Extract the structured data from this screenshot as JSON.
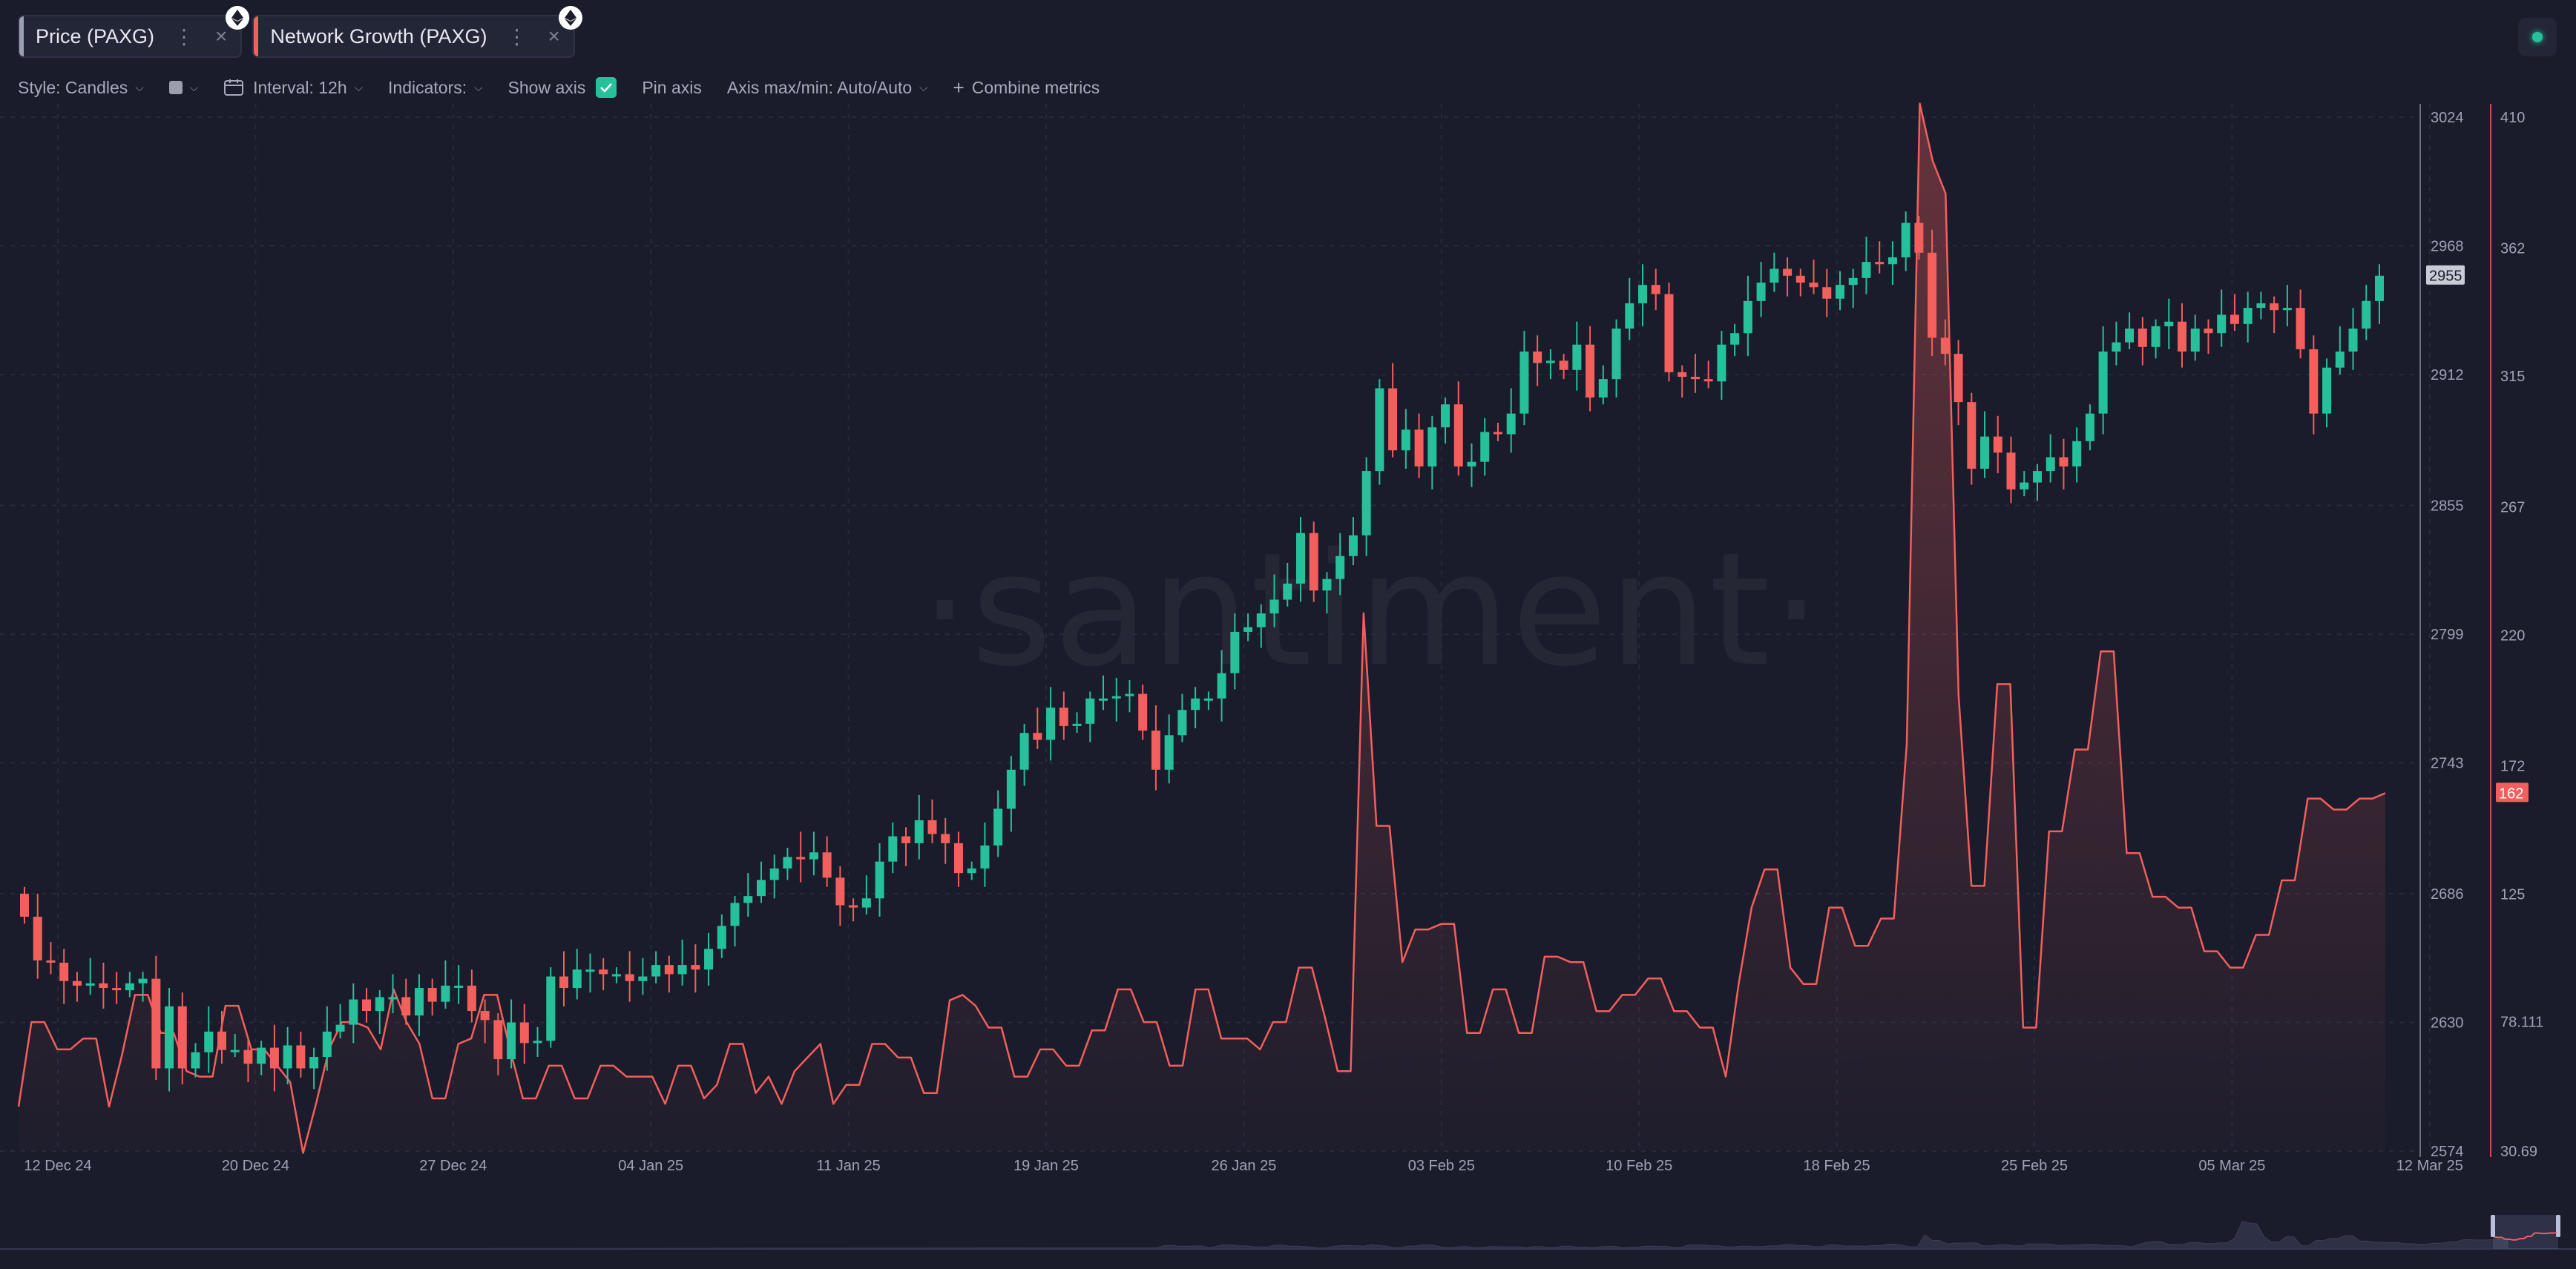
{
  "tabs": [
    {
      "label": "Price (PAXG)",
      "color": "#9aa0b4",
      "dots": "⋮",
      "close": "×"
    },
    {
      "label": "Network Growth (PAXG)",
      "color": "#f25f5c",
      "dots": "⋮",
      "close": "×"
    }
  ],
  "toolbar": {
    "style": "Style: Candles",
    "interval": "Interval: 12h",
    "indicators": "Indicators:",
    "show_axis": "Show axis",
    "pin_axis": "Pin axis",
    "axis_maxmin": "Axis max/min: Auto/Auto",
    "combine": "Combine metrics"
  },
  "watermark": "·santiment·",
  "colors": {
    "up": "#26c19a",
    "down": "#f25f5c",
    "line": "#f25f5c",
    "background": "#1a1c2b"
  },
  "chart_data": {
    "type": "candlestick+line",
    "x_tick_labels": [
      "12 Dec 24",
      "20 Dec 24",
      "27 Dec 24",
      "04 Jan 25",
      "11 Jan 25",
      "19 Jan 25",
      "26 Jan 25",
      "03 Feb 25",
      "10 Feb 25",
      "18 Feb 25",
      "25 Feb 25",
      "05 Mar 25",
      "12 Mar 25"
    ],
    "price_axis": {
      "ticks": [
        "3024",
        "2968",
        "2912",
        "2855",
        "2799",
        "2743",
        "2686",
        "2630",
        "2574"
      ],
      "min": 2574,
      "max": 3024,
      "current": "2955"
    },
    "growth_axis": {
      "ticks": [
        "410",
        "362",
        "315",
        "267",
        "220",
        "172",
        "125",
        "78.111",
        "30.69"
      ],
      "min": 30.69,
      "max": 410,
      "current": "162"
    },
    "price_closes": [
      2676,
      2657,
      2656,
      2648,
      2646,
      2647,
      2645,
      2644,
      2647,
      2649,
      2610,
      2637,
      2610,
      2617,
      2626,
      2618,
      2618,
      2612,
      2619,
      2610,
      2620,
      2610,
      2615,
      2626,
      2629,
      2640,
      2635,
      2641,
      2641,
      2633,
      2645,
      2639,
      2646,
      2646,
      2635,
      2631,
      2614,
      2630,
      2621,
      2622,
      2650,
      2645,
      2653,
      2653,
      2651,
      2651,
      2648,
      2650,
      2655,
      2651,
      2655,
      2653,
      2662,
      2672,
      2682,
      2685,
      2692,
      2697,
      2702,
      2701,
      2704,
      2693,
      2681,
      2680,
      2684,
      2700,
      2711,
      2708,
      2718,
      2712,
      2708,
      2695,
      2697,
      2707,
      2723,
      2740,
      2756,
      2753,
      2767,
      2759,
      2760,
      2771,
      2771,
      2772,
      2773,
      2757,
      2740,
      2755,
      2766,
      2771,
      2771,
      2782,
      2800,
      2802,
      2808,
      2814,
      2821,
      2843,
      2818,
      2823,
      2833,
      2842,
      2870,
      2906,
      2879,
      2888,
      2872,
      2889,
      2899,
      2872,
      2874,
      2887,
      2886,
      2895,
      2922,
      2917,
      2918,
      2914,
      2925,
      2902,
      2910,
      2932,
      2943,
      2951,
      2947,
      2913,
      2911,
      2910,
      2909,
      2925,
      2930,
      2944,
      2952,
      2958,
      2955,
      2952,
      2950,
      2945,
      2951,
      2954,
      2961,
      2960,
      2963,
      2978,
      2965,
      2928,
      2921,
      2900,
      2871,
      2885,
      2878,
      2862,
      2865,
      2870,
      2876,
      2872,
      2883,
      2895,
      2922,
      2926,
      2932,
      2924,
      2933,
      2935,
      2922,
      2932,
      2930,
      2938,
      2934,
      2941,
      2943,
      2940,
      2941,
      2923,
      2895,
      2915,
      2922,
      2932,
      2944,
      2955
    ],
    "network_growth": [
      47,
      78,
      78,
      68,
      68,
      72,
      72,
      47,
      66,
      88,
      88,
      74,
      74,
      60,
      58,
      58,
      84,
      84,
      68,
      68,
      62,
      56,
      30,
      48,
      68,
      78,
      78,
      76,
      68,
      90,
      78,
      70,
      50,
      50,
      70,
      72,
      88,
      88,
      68,
      50,
      50,
      62,
      62,
      50,
      50,
      62,
      62,
      58,
      58,
      58,
      48,
      62,
      62,
      50,
      55,
      70,
      70,
      52,
      58,
      48,
      60,
      65,
      70,
      48,
      55,
      55,
      70,
      70,
      65,
      65,
      52,
      52,
      86,
      88,
      84,
      76,
      76,
      58,
      58,
      68,
      68,
      62,
      62,
      75,
      75,
      90,
      90,
      78,
      78,
      62,
      62,
      90,
      90,
      72,
      72,
      72,
      68,
      78,
      78,
      98,
      98,
      80,
      60,
      60,
      228,
      150,
      150,
      100,
      112,
      112,
      114,
      114,
      74,
      74,
      90,
      90,
      74,
      74,
      102,
      102,
      100,
      100,
      82,
      82,
      88,
      88,
      94,
      94,
      82,
      82,
      76,
      76,
      58,
      92,
      120,
      134,
      134,
      98,
      92,
      92,
      120,
      120,
      106,
      106,
      116,
      116,
      180,
      415,
      394,
      382,
      198,
      128,
      128,
      202,
      202,
      76,
      76,
      148,
      148,
      178,
      178,
      214,
      214,
      140,
      140,
      124,
      124,
      120,
      120,
      104,
      104,
      98,
      98,
      110,
      110,
      130,
      130,
      160,
      160,
      156,
      156,
      160,
      160,
      162
    ]
  }
}
